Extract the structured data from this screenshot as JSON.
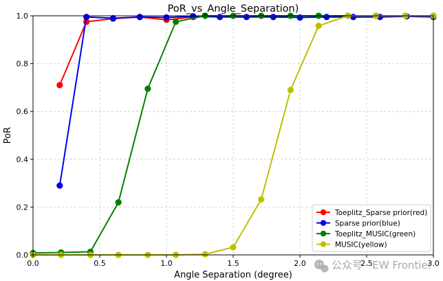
{
  "chart_data": {
    "type": "line",
    "title": "PoR_vs_Angle_Separation)",
    "xlabel": "Angle Separation (degree)",
    "ylabel": "PoR",
    "xlim": [
      0,
      3.0
    ],
    "ylim": [
      0,
      1.0
    ],
    "xticks": [
      "0.0",
      "0.5",
      "1.0",
      "1.5",
      "2.0",
      "2.5",
      "3.0"
    ],
    "yticks": [
      "0.0",
      "0.2",
      "0.4",
      "0.6",
      "0.8",
      "1.0"
    ],
    "grid": true,
    "legend_position": "lower-right",
    "series": [
      {
        "name": "Toeplitz_Sparse prior(red)",
        "color": "#ff0000",
        "x": [
          0.2,
          0.4,
          0.6,
          0.8,
          1.0,
          1.2
        ],
        "y": [
          0.71,
          0.975,
          0.988,
          0.995,
          0.983,
          0.995
        ]
      },
      {
        "name": "Sparse prior(blue)",
        "color": "#0000ee",
        "x": [
          0.2,
          0.4,
          0.6,
          0.8,
          1.0,
          1.2,
          1.4,
          1.6,
          1.8,
          2.0,
          2.2,
          2.4,
          2.6,
          2.8,
          3.0
        ],
        "y": [
          0.29,
          0.995,
          0.99,
          0.995,
          0.993,
          0.998,
          0.995,
          0.995,
          0.995,
          0.993,
          0.995,
          0.995,
          0.995,
          0.998,
          0.995
        ]
      },
      {
        "name": "Toeplitz_MUSIC(green)",
        "color": "#008000",
        "x": [
          0.0,
          0.21,
          0.43,
          0.64,
          0.86,
          1.07,
          1.29,
          1.5,
          1.71,
          1.93,
          2.14,
          2.36,
          2.57,
          2.79,
          3.0
        ],
        "y": [
          0.008,
          0.01,
          0.013,
          0.22,
          0.695,
          0.975,
          1.0,
          1.0,
          1.0,
          1.0,
          1.0,
          1.0,
          1.0,
          1.0,
          1.0
        ]
      },
      {
        "name": "MUSIC(yellow)",
        "color": "#bfbf00",
        "x": [
          0.0,
          0.21,
          0.43,
          0.64,
          0.86,
          1.07,
          1.29,
          1.5,
          1.71,
          1.93,
          2.14,
          2.36,
          2.57,
          2.79,
          3.0
        ],
        "y": [
          0.0,
          0.0,
          0.0,
          0.0,
          0.0,
          0.0,
          0.003,
          0.032,
          0.232,
          0.69,
          0.958,
          1.0,
          1.0,
          1.0,
          1.0
        ]
      }
    ]
  },
  "watermark": {
    "text": "公众号 · EW Frontier",
    "icon": "wechat-icon"
  }
}
